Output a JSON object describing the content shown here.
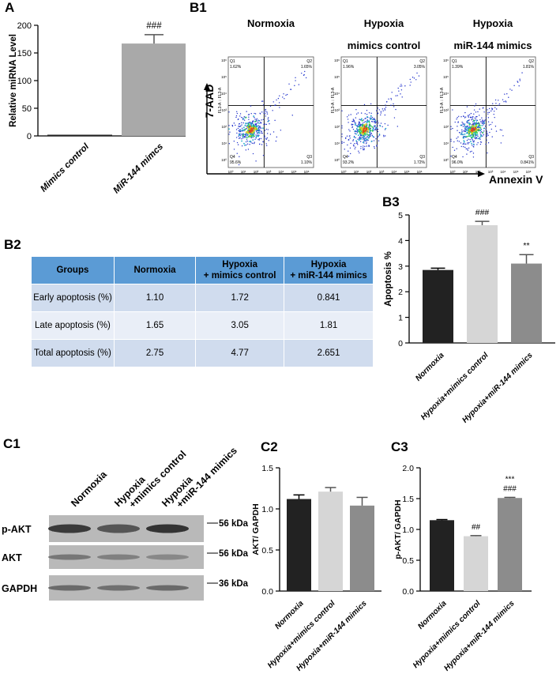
{
  "labels": {
    "A": "A",
    "B1": "B1",
    "B2": "B2",
    "B3": "B3",
    "C1": "C1",
    "C2": "C2",
    "C3": "C3"
  },
  "flow": {
    "y_axis_label": "7-AAD",
    "x_axis_label": "Annexin V",
    "panels": [
      {
        "title1": "Normoxia",
        "title2": "",
        "q1": "1.62%",
        "q2": "1.65%",
        "q3": "1.10%",
        "q4": "95.6%"
      },
      {
        "title1": "Hypoxia",
        "title2": "mimics control",
        "q1": "1.96%",
        "q2": "3.05%",
        "q3": "1.72%",
        "q4": "93.2%"
      },
      {
        "title1": "Hypoxia",
        "title2": "miR-144 mimics",
        "q1": "1.39%",
        "q2": "1.81%",
        "q3": "0.841%",
        "q4": "96.0%"
      }
    ],
    "quadrant_labels": [
      "Q1",
      "Q2",
      "Q3",
      "Q4"
    ],
    "axis_channel": "FL3-A :: FL3-A",
    "tick_labels_y": [
      "10⁶",
      "10⁵",
      "10⁴",
      "10³",
      "10²",
      "10¹",
      "10⁰"
    ],
    "tick_labels_x": [
      "10⁰",
      "10¹",
      "10²",
      "10³",
      "10⁴",
      "10⁵",
      "10⁶"
    ]
  },
  "table": {
    "headers": [
      "Groups",
      "Normoxia",
      "Hypoxia\n+ mimics control",
      "Hypoxia\n+ miR-144 mimics"
    ],
    "rows": [
      [
        "Early apoptosis (%)",
        "1.10",
        "1.72",
        "0.841"
      ],
      [
        "Late apoptosis (%)",
        "1.65",
        "3.05",
        "1.81"
      ],
      [
        "Total apoptosis (%)",
        "2.75",
        "4.77",
        "2.651"
      ]
    ]
  },
  "blot": {
    "columns": [
      "Normoxia",
      "Hypoxia\n+mimics control",
      "Hypoxia\n+miR-144 mimics"
    ],
    "bands": [
      {
        "name": "p-AKT",
        "size": "56 kDa"
      },
      {
        "name": "AKT",
        "size": "56 kDa"
      },
      {
        "name": "GAPDH",
        "size": "36 kDa"
      }
    ]
  },
  "chart_data": [
    {
      "id": "A",
      "type": "bar",
      "title": "",
      "categories": [
        "Mimics control",
        "MiR-144 mimcs"
      ],
      "values": [
        2,
        167
      ],
      "errors": [
        0,
        16
      ],
      "annotations": [
        "",
        "###"
      ],
      "xlabel": "",
      "ylabel": "Relative miRNA Level",
      "ylim": [
        0,
        200
      ],
      "yticks": [
        0,
        50,
        100,
        150,
        200
      ],
      "colors": [
        "#222222",
        "#a9a9a9"
      ]
    },
    {
      "id": "B3",
      "type": "bar",
      "title": "",
      "categories": [
        "Normoxia",
        "Hypoxia+mimics control",
        "Hypoxia+miR-144 mimics"
      ],
      "values": [
        2.85,
        4.6,
        3.1
      ],
      "errors": [
        0.07,
        0.15,
        0.35
      ],
      "annotations": [
        "",
        "###",
        "**"
      ],
      "xlabel": "",
      "ylabel": "Apoptosis %",
      "ylim": [
        0,
        5
      ],
      "yticks": [
        0,
        1,
        2,
        3,
        4,
        5
      ],
      "colors": [
        "#222222",
        "#d6d6d6",
        "#8c8c8c"
      ]
    },
    {
      "id": "C2",
      "type": "bar",
      "title": "",
      "categories": [
        "Normoxia",
        "Hypoxia+mimics control",
        "Hypoxia+miR-144 mimics"
      ],
      "values": [
        1.12,
        1.21,
        1.04
      ],
      "errors": [
        0.05,
        0.05,
        0.1
      ],
      "annotations": [
        "",
        "",
        ""
      ],
      "xlabel": "",
      "ylabel": "AKT/ GAPDH",
      "ylim": [
        0,
        1.5
      ],
      "yticks": [
        0.0,
        0.5,
        1.0,
        1.5
      ],
      "colors": [
        "#222222",
        "#d6d6d6",
        "#8c8c8c"
      ]
    },
    {
      "id": "C3",
      "type": "bar",
      "title": "",
      "categories": [
        "Normoxia",
        "Hypoxia+mimics control",
        "Hypoxia+miR-144 mimics"
      ],
      "values": [
        1.15,
        0.89,
        1.51
      ],
      "errors": [
        0.01,
        0.01,
        0.01
      ],
      "annotations": [
        "",
        "##",
        "***\n###"
      ],
      "xlabel": "",
      "ylabel": "p-AKT/ GAPDH",
      "ylim": [
        0,
        2.0
      ],
      "yticks": [
        0.0,
        0.5,
        1.0,
        1.5,
        2.0
      ],
      "colors": [
        "#222222",
        "#d6d6d6",
        "#8c8c8c"
      ]
    }
  ]
}
